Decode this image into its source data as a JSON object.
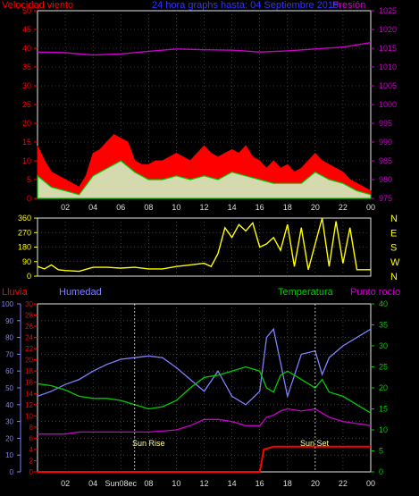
{
  "title": "24 hora graphs hasta: 04 Septiembre 2015",
  "x_ticks": [
    "02",
    "04",
    "06",
    "08",
    "10",
    "12",
    "14",
    "16",
    "18",
    "20",
    "22",
    "00"
  ],
  "panel1": {
    "left_label": "Velocidad viento",
    "right_label": "Presión",
    "left_ticks": [
      "0",
      "5",
      "10",
      "15",
      "20",
      "25",
      "30",
      "35",
      "40",
      "45",
      "50"
    ],
    "right_ticks": [
      "975",
      "980",
      "985",
      "990",
      "995",
      "1000",
      "1005",
      "1010",
      "1015",
      "1020",
      "1025"
    ]
  },
  "panel2": {
    "left_ticks": [
      "0",
      "90",
      "180",
      "270",
      "360"
    ],
    "right_labels": [
      "N",
      "W",
      "S",
      "E",
      "N"
    ]
  },
  "panel3": {
    "label_lluvia": "Lluvia",
    "label_humedad": "Humedad",
    "label_temperatura": "Temperatura",
    "label_punto_rocio": "Punto rocío",
    "humidity_ticks": [
      "0",
      "10",
      "20",
      "30",
      "40",
      "50",
      "60",
      "70",
      "80",
      "90",
      "100"
    ],
    "rain_ticks": [
      "0",
      "2",
      "4",
      "6",
      "8",
      "10",
      "12",
      "14",
      "16",
      "18",
      "20",
      "22",
      "24",
      "26",
      "28",
      "30"
    ],
    "temp_ticks": [
      "0",
      "5",
      "10",
      "15",
      "20",
      "25",
      "30",
      "35",
      "40"
    ],
    "sunrise_label": "Sun Rise",
    "sunset_label": "Sun Set",
    "x_tick_06_override": "Sun08ec"
  },
  "colors": {
    "wind_gust": "#ff0000",
    "wind_avg": "#00cc00",
    "wind_direction": "#ffff00",
    "pressure": "#cc00cc",
    "rain": "#ff0000",
    "humidity": "#8080ff",
    "temperature": "#00cc00",
    "dew_point": "#cc00cc",
    "left_axis_red": "#ff0000",
    "title_blue": "#3333ff"
  },
  "chart_data": [
    {
      "type": "area",
      "title": "24 hora graphs hasta: 04 Septiembre 2015",
      "x_range_hours": [
        0,
        24
      ],
      "y_left_label": "Velocidad viento",
      "y_left_lim": [
        0,
        50
      ],
      "y_right_label": "Presión",
      "y_right_lim": [
        975,
        1025
      ],
      "series": [
        {
          "name": "Gust",
          "x": [
            0,
            0.5,
            1,
            1.5,
            2,
            2.5,
            3,
            3.5,
            4,
            4.5,
            5,
            5.5,
            6,
            6.5,
            7,
            7.5,
            8,
            8.5,
            9,
            9.5,
            10,
            10.5,
            11,
            11.5,
            12,
            12.5,
            13,
            13.5,
            14,
            14.5,
            15,
            15.5,
            16,
            16.5,
            17,
            17.5,
            18,
            18.5,
            19,
            19.5,
            20,
            20.5,
            21,
            21.5,
            22,
            22.5,
            23,
            23.5,
            24
          ],
          "values": [
            14,
            10,
            7,
            6,
            5,
            4,
            3,
            6,
            12,
            13,
            15,
            17,
            16,
            15,
            10,
            9,
            9,
            10,
            10,
            11,
            12,
            11,
            10,
            12,
            14,
            12,
            11,
            12,
            13,
            12,
            14,
            11,
            10,
            8,
            10,
            8,
            9,
            7,
            8,
            10,
            12,
            10,
            9,
            8,
            7,
            5,
            4,
            3,
            2
          ]
        },
        {
          "name": "Average",
          "x": [
            0,
            1,
            2,
            3,
            4,
            5,
            6,
            7,
            8,
            9,
            10,
            11,
            12,
            13,
            14,
            15,
            16,
            17,
            18,
            19,
            20,
            21,
            22,
            23,
            24
          ],
          "values": [
            6,
            3,
            2,
            1,
            6,
            8,
            10,
            7,
            5,
            5,
            6,
            5,
            6,
            5,
            7,
            6,
            5,
            4,
            4,
            4,
            7,
            5,
            4,
            2,
            1
          ]
        },
        {
          "name": "Pressure",
          "x": [
            0,
            2,
            4,
            6,
            8,
            10,
            12,
            14,
            16,
            18,
            20,
            22,
            24
          ],
          "values": [
            1014,
            1013.8,
            1013.2,
            1013.5,
            1014.2,
            1014.8,
            1014.6,
            1014.5,
            1014,
            1014.3,
            1014.8,
            1015.3,
            1016.5
          ]
        }
      ]
    },
    {
      "type": "line",
      "y_left_lim": [
        0,
        360
      ],
      "series": [
        {
          "name": "Wind direction",
          "x": [
            0,
            0.5,
            1,
            1.5,
            2,
            3,
            4,
            5,
            6,
            7,
            8,
            9,
            10,
            11,
            12,
            12.5,
            13,
            13.5,
            14,
            14.5,
            15,
            15.5,
            16,
            16.5,
            17,
            17.5,
            18,
            18.5,
            19,
            19.5,
            20,
            20.5,
            21,
            21.5,
            22,
            22.5,
            23,
            24
          ],
          "values": [
            60,
            45,
            70,
            40,
            35,
            30,
            55,
            55,
            50,
            55,
            45,
            45,
            60,
            70,
            80,
            60,
            140,
            300,
            240,
            320,
            280,
            330,
            180,
            200,
            240,
            160,
            320,
            60,
            300,
            40,
            200,
            360,
            60,
            340,
            80,
            300,
            40,
            40
          ]
        }
      ]
    },
    {
      "type": "line",
      "y_left_lim": [
        0,
        100
      ],
      "y_rain_lim": [
        0,
        30
      ],
      "y_right_lim": [
        0,
        40
      ],
      "series": [
        {
          "name": "Lluvia",
          "x": [
            0,
            16,
            16.3,
            17,
            24
          ],
          "values": [
            0,
            0,
            4,
            4.5,
            4.5
          ]
        },
        {
          "name": "Humedad",
          "x": [
            0,
            1,
            2,
            3,
            4,
            5,
            6,
            7,
            8,
            9,
            10,
            11,
            12,
            13,
            14,
            15,
            16,
            16.5,
            17,
            17.5,
            18,
            19,
            20,
            20.5,
            21,
            22,
            23,
            24
          ],
          "values": [
            45,
            48,
            52,
            55,
            60,
            64,
            67,
            68,
            69,
            68,
            62,
            55,
            48,
            60,
            45,
            40,
            48,
            80,
            85,
            65,
            45,
            70,
            72,
            58,
            68,
            75,
            80,
            85
          ]
        },
        {
          "name": "Temperatura",
          "x": [
            0,
            1,
            2,
            3,
            4,
            5,
            6,
            7,
            8,
            9,
            10,
            11,
            12,
            13,
            14,
            15,
            16,
            16.5,
            17,
            17.5,
            18,
            19,
            20,
            20.5,
            21,
            22,
            23,
            24
          ],
          "values": [
            21,
            20.5,
            19.5,
            18,
            17.5,
            17.5,
            17,
            16,
            15,
            15.5,
            17,
            20,
            22.5,
            23,
            24,
            25,
            24,
            20,
            19,
            23,
            24,
            22,
            20,
            22,
            19,
            18,
            16,
            14
          ]
        },
        {
          "name": "Punto rocío",
          "x": [
            0,
            1,
            2,
            3,
            4,
            5,
            6,
            7,
            8,
            9,
            10,
            11,
            12,
            13,
            14,
            15,
            16,
            16.5,
            17,
            17.5,
            18,
            19,
            20,
            20.5,
            21,
            22,
            23,
            24
          ],
          "values": [
            9,
            9,
            9,
            9.5,
            9.5,
            9.5,
            9.5,
            9.5,
            9.5,
            9.7,
            10,
            11,
            12.5,
            12.5,
            12,
            11,
            11,
            13,
            13.5,
            14.5,
            15,
            14.5,
            15,
            14,
            13,
            12,
            11.5,
            11
          ]
        }
      ]
    }
  ]
}
